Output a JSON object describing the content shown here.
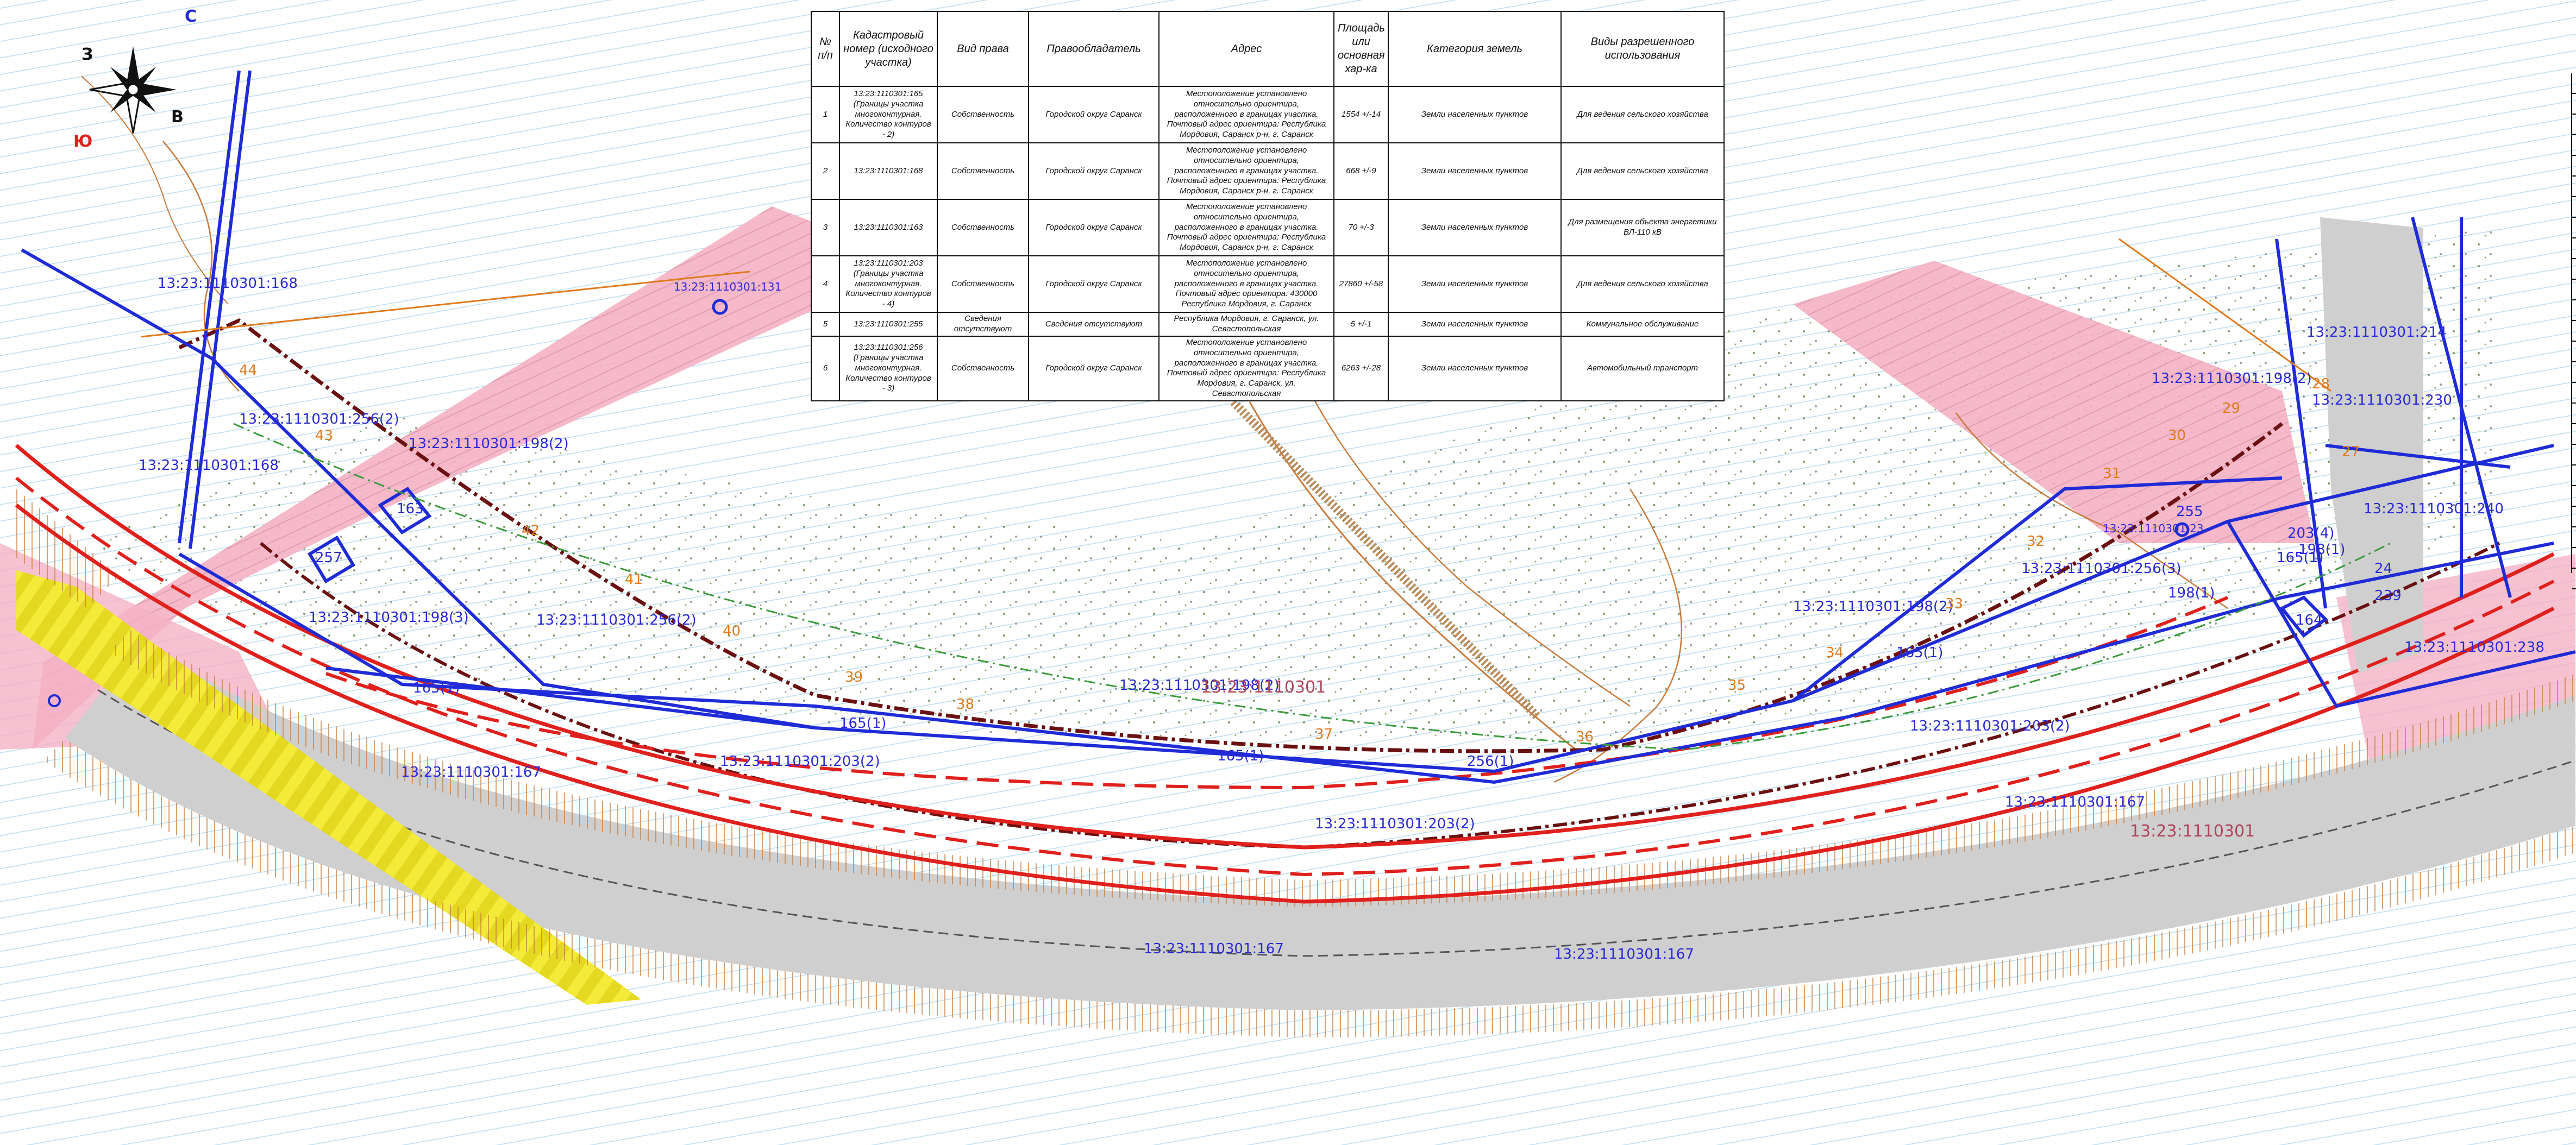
{
  "compass": {
    "north": "С",
    "south": "Ю",
    "east": "В",
    "west": "З"
  },
  "table": {
    "headers": [
      "№ п/п",
      "Кадастровый номер (исходного участка)",
      "Вид права",
      "Правообладатель",
      "Адрес",
      "Площадь или основная хар-ка",
      "Категория земель",
      "Виды разрешенного использования"
    ],
    "rows": [
      [
        "1",
        "13:23:1110301:165 (Границы участка многоконтурная. Количество контуров - 2)",
        "Собственность",
        "Городской округ Саранск",
        "Местоположение установлено относительно ориентира, расположенного в границах участка. Почтовый адрес ориентира: Республика Мордовия, Саранск р-н, г. Саранск",
        "1554 +/-14",
        "Земли населенных пунктов",
        "Для ведения сельского хозяйства"
      ],
      [
        "2",
        "13:23:1110301:168",
        "Собственность",
        "Городской округ Саранск",
        "Местоположение установлено относительно ориентира, расположенного в границах участка. Почтовый адрес ориентира: Республика Мордовия, Саранск р-н, г. Саранск",
        "668 +/-9",
        "Земли населенных пунктов",
        "Для ведения сельского хозяйства"
      ],
      [
        "3",
        "13:23:1110301:163",
        "Собственность",
        "Городской округ Саранск",
        "Местоположение установлено относительно ориентира, расположенного в границах участка. Почтовый адрес ориентира: Республика Мордовия, Саранск р-н, г. Саранск",
        "70 +/-3",
        "Земли населенных пунктов",
        "Для размещения объекта энергетики ВЛ-110 кВ"
      ],
      [
        "4",
        "13:23:1110301:203 (Границы участка многоконтурная. Количество контуров - 4)",
        "Собственность",
        "Городской округ Саранск",
        "Местоположение установлено относительно ориентира, расположенного в границах участка. Почтовый адрес ориентира: 430000 Республика Мордовия, г. Саранск",
        "27860 +/-58",
        "Земли населенных пунктов",
        "Для ведения сельского хозяйства"
      ],
      [
        "5",
        "13:23:1110301:255",
        "Сведения отсутствуют",
        "Сведения отсутствуют",
        "Республика Мордовия, г. Саранск, ул. Севастопольская",
        "5 +/-1",
        "Земли населенных пунктов",
        "Коммунальное обслуживание"
      ],
      [
        "6",
        "13:23:1110301:256 (Границы участка многоконтурная. Количество контуров - 3)",
        "Собственность",
        "Городской округ Саранск",
        "Местоположение установлено относительно ориентира, расположенного в границах участка. Почтовый адрес ориентира: Республика Мордовия, г. Саранск, ул. Севастопольская",
        "6263 +/-28",
        "Земли населенных пунктов",
        "Автомобильный транспорт"
      ]
    ]
  },
  "parcel_labels": [
    "13:23:1110301:168",
    "13:23:1110301:168",
    "13:23:1110301:256(2)",
    "13:23:1110301:198(2)",
    "13:23:1110301:198(3)",
    "13:23:1110301:256(2)",
    "13:23:1110301:198(2)",
    "13:23:1110301:203(2)",
    "13:23:1110301:167",
    "13:23:1110301:203(2)",
    "13:23:1110301:167",
    "13:23:1110301:167",
    "13:23:1110301:198(2)",
    "13:23:1110301:256(3)",
    "13:23:1110301:203(2)",
    "13:23:1110301:167",
    "13:23:1110301:214",
    "13:23:1110301:198(2)",
    "13:23:1110301:230",
    "13:23:1110301:240",
    "13:23:1110301:238",
    "13:23:1110301:23",
    "13:23:1110301:131"
  ],
  "small_labels": [
    "163",
    "257",
    "165(1)",
    "165(1)",
    "165(1)",
    "256(1)",
    "198(1)",
    "198(1)",
    "165(1)",
    "164",
    "165(1)",
    "203(4)",
    "255",
    "239",
    "24"
  ],
  "point_numbers": [
    "44",
    "43",
    "42",
    "41",
    "40",
    "39",
    "38",
    "37",
    "36",
    "35",
    "34",
    "33",
    "32",
    "31",
    "30",
    "29",
    "28",
    "27"
  ],
  "quarter_labels": [
    "13:23:1110301",
    "13:23:1110301"
  ],
  "colors": {
    "boundary_blue": "#1f2bd6",
    "red_line": "#e0201c",
    "dark_dash": "#6b1010",
    "pink_zone": "#f4a7bd",
    "road_grey": "#cfcfcf",
    "yellow": "#f3ea3a",
    "contour": "#c87a3c"
  }
}
